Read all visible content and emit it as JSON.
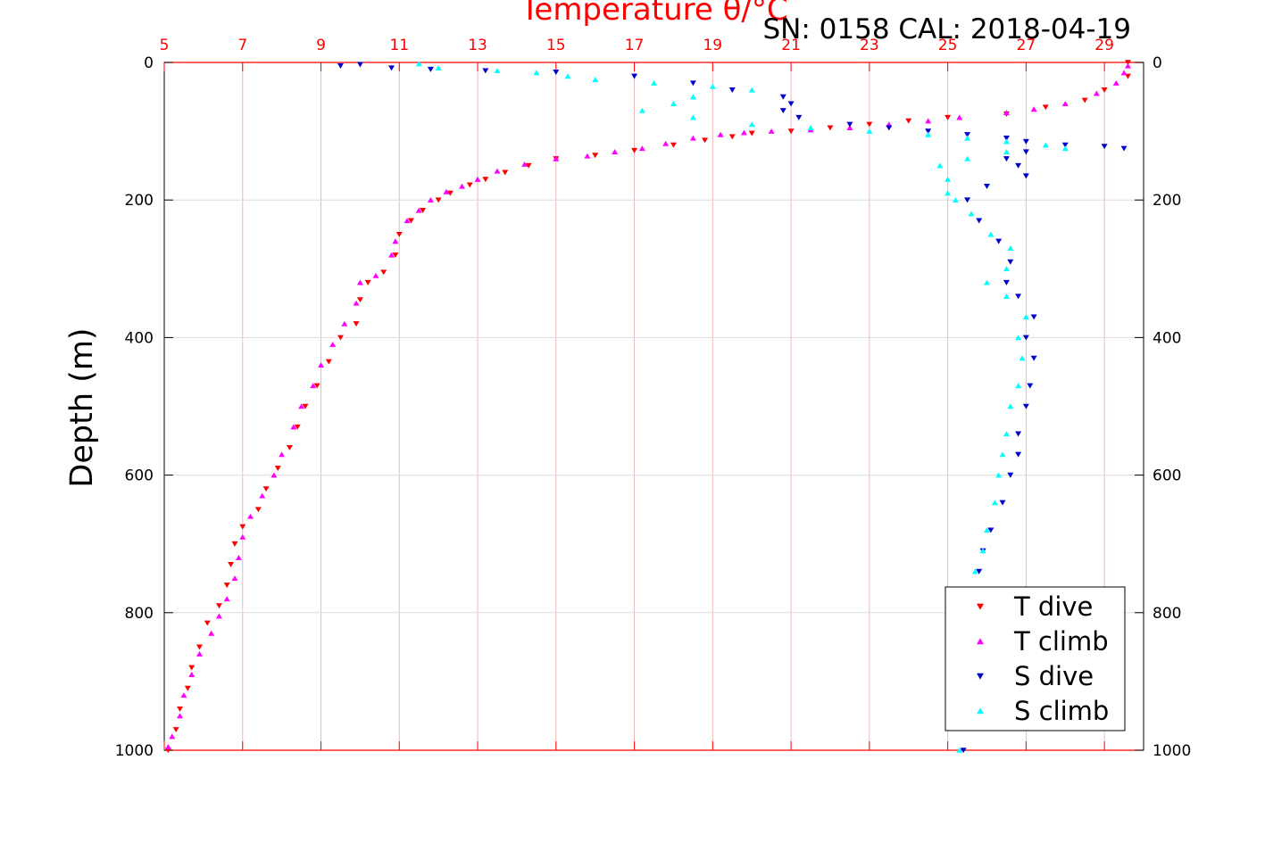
{
  "chart_data": {
    "type": "scatter",
    "title": "Temperature θ/°C",
    "annotation": "SN: 0158  CAL: 2018-04-19",
    "xlabel": "Temperature θ/°C",
    "ylabel": "Depth (m)",
    "xlim": [
      5,
      30
    ],
    "ylim": [
      1000,
      0
    ],
    "x_ticks": [
      5,
      7,
      9,
      11,
      13,
      15,
      17,
      19,
      21,
      23,
      25,
      27,
      29
    ],
    "y_ticks": [
      0,
      200,
      400,
      600,
      800,
      1000
    ],
    "grid": true,
    "x_axis_position": "top",
    "legend_position": "bottom-right",
    "colors": {
      "T dive": "#ff0000",
      "T climb": "#ff00ff",
      "S dive": "#0000cc",
      "S climb": "#00ffff",
      "top_axis": "#ff0000",
      "grid_x": "#f2b8b8",
      "grid_y": "#dcdcdc"
    },
    "series": [
      {
        "name": "T dive",
        "marker": "triangle-down",
        "color": "#ff0000",
        "points": [
          [
            29.6,
            0
          ],
          [
            29.6,
            20
          ],
          [
            29.0,
            40
          ],
          [
            28.5,
            55
          ],
          [
            27.5,
            65
          ],
          [
            26.5,
            75
          ],
          [
            25.0,
            80
          ],
          [
            24.0,
            85
          ],
          [
            23.0,
            90
          ],
          [
            22.0,
            95
          ],
          [
            21.0,
            100
          ],
          [
            20.0,
            103
          ],
          [
            19.5,
            108
          ],
          [
            18.8,
            113
          ],
          [
            18.0,
            120
          ],
          [
            17.0,
            128
          ],
          [
            16.0,
            135
          ],
          [
            15.0,
            140
          ],
          [
            14.3,
            150
          ],
          [
            13.7,
            160
          ],
          [
            13.2,
            170
          ],
          [
            12.8,
            178
          ],
          [
            12.3,
            190
          ],
          [
            12.0,
            200
          ],
          [
            11.6,
            215
          ],
          [
            11.3,
            230
          ],
          [
            11.0,
            250
          ],
          [
            10.9,
            280
          ],
          [
            10.6,
            305
          ],
          [
            10.2,
            320
          ],
          [
            10.0,
            345
          ],
          [
            9.9,
            380
          ],
          [
            9.5,
            400
          ],
          [
            9.2,
            435
          ],
          [
            8.9,
            470
          ],
          [
            8.6,
            500
          ],
          [
            8.4,
            530
          ],
          [
            8.2,
            560
          ],
          [
            7.9,
            590
          ],
          [
            7.6,
            620
          ],
          [
            7.4,
            650
          ],
          [
            7.0,
            675
          ],
          [
            6.8,
            700
          ],
          [
            6.7,
            730
          ],
          [
            6.6,
            760
          ],
          [
            6.4,
            790
          ],
          [
            6.1,
            815
          ],
          [
            5.9,
            850
          ],
          [
            5.7,
            880
          ],
          [
            5.6,
            910
          ],
          [
            5.4,
            940
          ],
          [
            5.3,
            970
          ],
          [
            5.1,
            1000
          ]
        ]
      },
      {
        "name": "T climb",
        "marker": "triangle-up",
        "color": "#ff00ff",
        "points": [
          [
            29.6,
            5
          ],
          [
            29.5,
            15
          ],
          [
            29.3,
            30
          ],
          [
            28.8,
            45
          ],
          [
            28.0,
            60
          ],
          [
            27.2,
            68
          ],
          [
            26.5,
            73
          ],
          [
            25.3,
            80
          ],
          [
            24.5,
            85
          ],
          [
            23.5,
            90
          ],
          [
            22.5,
            95
          ],
          [
            21.5,
            98
          ],
          [
            20.5,
            100
          ],
          [
            19.8,
            102
          ],
          [
            19.2,
            105
          ],
          [
            18.5,
            110
          ],
          [
            17.8,
            118
          ],
          [
            17.2,
            125
          ],
          [
            16.5,
            130
          ],
          [
            15.8,
            136
          ],
          [
            15.0,
            140
          ],
          [
            14.2,
            148
          ],
          [
            13.5,
            158
          ],
          [
            13.0,
            170
          ],
          [
            12.6,
            180
          ],
          [
            12.2,
            188
          ],
          [
            11.8,
            200
          ],
          [
            11.5,
            215
          ],
          [
            11.2,
            230
          ],
          [
            10.9,
            260
          ],
          [
            10.8,
            280
          ],
          [
            10.4,
            310
          ],
          [
            10.0,
            320
          ],
          [
            9.9,
            350
          ],
          [
            9.6,
            380
          ],
          [
            9.3,
            410
          ],
          [
            9.0,
            440
          ],
          [
            8.8,
            470
          ],
          [
            8.5,
            500
          ],
          [
            8.3,
            530
          ],
          [
            8.0,
            570
          ],
          [
            7.8,
            600
          ],
          [
            7.5,
            630
          ],
          [
            7.2,
            660
          ],
          [
            7.0,
            690
          ],
          [
            6.9,
            720
          ],
          [
            6.8,
            750
          ],
          [
            6.6,
            780
          ],
          [
            6.4,
            805
          ],
          [
            6.2,
            830
          ],
          [
            5.9,
            860
          ],
          [
            5.7,
            890
          ],
          [
            5.5,
            920
          ],
          [
            5.4,
            950
          ],
          [
            5.2,
            980
          ],
          [
            5.1,
            995
          ]
        ]
      },
      {
        "name": "S dive",
        "marker": "triangle-down",
        "color": "#0000cc",
        "points": [
          [
            9.5,
            5
          ],
          [
            10.0,
            3
          ],
          [
            10.8,
            8
          ],
          [
            11.8,
            10
          ],
          [
            13.2,
            12
          ],
          [
            15.0,
            14
          ],
          [
            17.0,
            20
          ],
          [
            18.5,
            30
          ],
          [
            19.5,
            40
          ],
          [
            20.8,
            50
          ],
          [
            21.0,
            60
          ],
          [
            20.8,
            70
          ],
          [
            21.2,
            80
          ],
          [
            22.5,
            90
          ],
          [
            23.5,
            95
          ],
          [
            24.5,
            100
          ],
          [
            25.5,
            105
          ],
          [
            26.5,
            110
          ],
          [
            27.0,
            115
          ],
          [
            28.0,
            120
          ],
          [
            29.0,
            122
          ],
          [
            29.5,
            125
          ],
          [
            27.0,
            130
          ],
          [
            26.5,
            140
          ],
          [
            26.8,
            150
          ],
          [
            27.0,
            165
          ],
          [
            26.0,
            180
          ],
          [
            25.5,
            200
          ],
          [
            25.8,
            230
          ],
          [
            26.3,
            260
          ],
          [
            26.6,
            290
          ],
          [
            26.5,
            320
          ],
          [
            26.8,
            340
          ],
          [
            27.2,
            370
          ],
          [
            27.0,
            400
          ],
          [
            27.2,
            430
          ],
          [
            27.1,
            470
          ],
          [
            27.0,
            500
          ],
          [
            26.8,
            540
          ],
          [
            26.8,
            570
          ],
          [
            26.6,
            600
          ],
          [
            26.4,
            640
          ],
          [
            26.1,
            680
          ],
          [
            25.9,
            710
          ],
          [
            25.8,
            740
          ],
          [
            25.9,
            770
          ],
          [
            25.7,
            800
          ],
          [
            25.6,
            850
          ],
          [
            25.6,
            900
          ],
          [
            25.5,
            950
          ],
          [
            25.4,
            1000
          ]
        ]
      },
      {
        "name": "S climb",
        "marker": "triangle-up",
        "color": "#00ffff",
        "points": [
          [
            11.5,
            2
          ],
          [
            12.0,
            8
          ],
          [
            13.5,
            12
          ],
          [
            14.5,
            15
          ],
          [
            15.3,
            20
          ],
          [
            16.0,
            25
          ],
          [
            17.5,
            30
          ],
          [
            19.0,
            35
          ],
          [
            20.0,
            40
          ],
          [
            18.5,
            50
          ],
          [
            18.0,
            60
          ],
          [
            17.2,
            70
          ],
          [
            18.5,
            80
          ],
          [
            20.0,
            90
          ],
          [
            21.5,
            95
          ],
          [
            23.0,
            100
          ],
          [
            24.5,
            105
          ],
          [
            25.5,
            110
          ],
          [
            26.5,
            115
          ],
          [
            27.5,
            120
          ],
          [
            28.0,
            125
          ],
          [
            26.5,
            130
          ],
          [
            25.5,
            140
          ],
          [
            24.8,
            150
          ],
          [
            25.0,
            170
          ],
          [
            25.0,
            190
          ],
          [
            25.2,
            200
          ],
          [
            25.6,
            220
          ],
          [
            26.1,
            250
          ],
          [
            26.6,
            270
          ],
          [
            26.5,
            300
          ],
          [
            26.0,
            320
          ],
          [
            26.5,
            340
          ],
          [
            27.0,
            370
          ],
          [
            26.8,
            400
          ],
          [
            26.9,
            430
          ],
          [
            26.8,
            470
          ],
          [
            26.6,
            500
          ],
          [
            26.5,
            540
          ],
          [
            26.4,
            570
          ],
          [
            26.3,
            600
          ],
          [
            26.2,
            640
          ],
          [
            26.0,
            680
          ],
          [
            25.9,
            710
          ],
          [
            25.7,
            740
          ],
          [
            25.8,
            770
          ],
          [
            25.6,
            800
          ],
          [
            25.5,
            850
          ],
          [
            25.5,
            900
          ],
          [
            25.4,
            950
          ],
          [
            25.3,
            1000
          ]
        ]
      }
    ]
  }
}
